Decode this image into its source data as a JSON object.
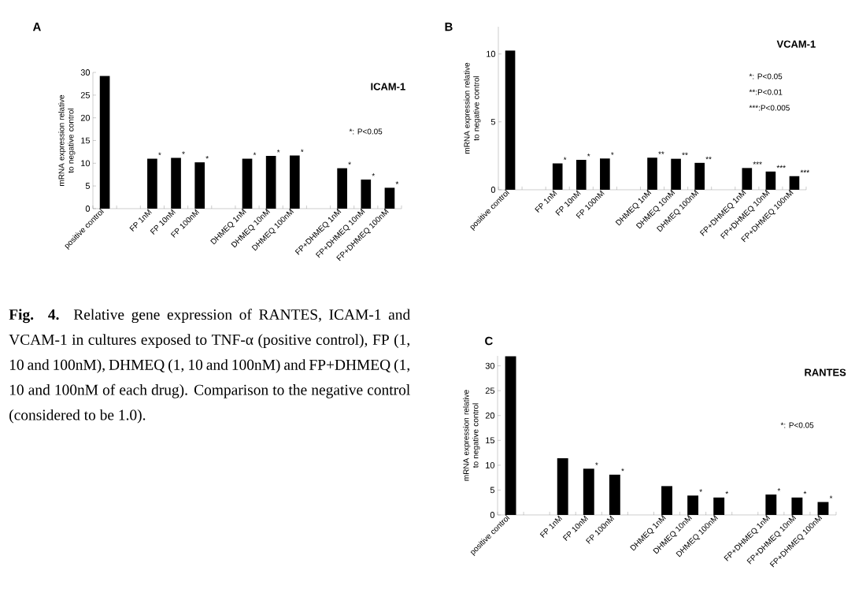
{
  "chart_data": [
    {
      "type": "bar",
      "title": "A",
      "subtitle": "ICAM-1",
      "ylabel": "mRNA expression relative to negative control",
      "categories": [
        "positive control",
        null,
        "FP 1nM",
        "FP 10nM",
        "FP 100nM",
        null,
        "DHMEQ 1nM",
        "DHMEQ 10nM",
        "DHMEQ 100nM",
        null,
        "FP+DHMEQ 1nM",
        "FP+DHMEQ 10nM",
        "FP+DHMEQ 100nM"
      ],
      "values": [
        29.2,
        null,
        11.0,
        11.2,
        10.2,
        null,
        11.0,
        11.6,
        11.7,
        null,
        8.9,
        6.4,
        4.6
      ],
      "value_labels": [
        null,
        null,
        "*",
        "*",
        "*",
        null,
        "*",
        "*",
        "*",
        null,
        "*",
        "*",
        "*"
      ],
      "color": "#000000",
      "ylim": [
        0,
        30
      ],
      "yticks": [
        0,
        5,
        10,
        15,
        20,
        25,
        30
      ],
      "annotations": [
        "*: P<0.05"
      ]
    },
    {
      "type": "bar",
      "title": "B",
      "subtitle": "VCAM-1",
      "ylabel": "mRNA expression relative to negative control",
      "categories": [
        "positive control",
        null,
        "FP 1nM",
        "FP 10nM",
        "FP 100nM",
        null,
        "DHMEQ 1nM",
        "DHMEQ 10nM",
        "DHMEQ 100nM",
        null,
        "FP+DHMEQ 1nM",
        "FP+DHMEQ 10nM",
        "FP+DHMEQ 100nM"
      ],
      "values": [
        10.24,
        null,
        1.94,
        2.2,
        2.3,
        null,
        2.36,
        2.28,
        1.98,
        null,
        1.6,
        1.34,
        1.0
      ],
      "value_labels": [
        null,
        null,
        "*",
        "*",
        "*",
        null,
        "**",
        "**",
        "**",
        null,
        "***",
        "***",
        "***"
      ],
      "color": "#000000",
      "ylim": [
        0,
        12
      ],
      "yticks": [
        0,
        5,
        10
      ],
      "annotations": [
        "*: P<0.05",
        "**:P<0.01",
        "***:P<0.005"
      ]
    },
    {
      "type": "other",
      "annotations": [
        "**Fig. 4.** Relative gene expression of RANTES, ICAM-1 and VCAM-1 in cultures exposed to TNF-α (positive control), FP (1, 10 and 100nM), DHMEQ (1, 10 and 100nM) and FP+DHMEQ (1, 10 and 100nM of each drug). Comparison to the negative control (considered to be 1.0)."
      ]
    },
    {
      "type": "bar",
      "title": "C",
      "subtitle": "RANTES",
      "ylabel": "mRNA expression relative to negative control",
      "categories": [
        "positive control",
        null,
        "FP 1nM",
        "FP 10nM",
        "FP 100nM",
        null,
        "DHMEQ 1nM",
        "DHMEQ 10nM",
        "DHMEQ 100nM",
        null,
        "FP+DHMEQ 1nM",
        "FP+DHMEQ 10nM",
        "FP+DHMEQ 100nM"
      ],
      "values": [
        31.9,
        null,
        11.4,
        9.3,
        8.1,
        null,
        5.8,
        3.9,
        3.5,
        null,
        4.1,
        3.5,
        2.6
      ],
      "value_labels": [
        null,
        null,
        null,
        "*",
        "*",
        null,
        null,
        "*",
        "*",
        null,
        "*",
        "*",
        "*"
      ],
      "color": "#000000",
      "ylim": [
        0,
        32
      ],
      "yticks": [
        0,
        5,
        10,
        15,
        20,
        25,
        30
      ],
      "annotations": [
        "*: P<0.05"
      ]
    }
  ]
}
